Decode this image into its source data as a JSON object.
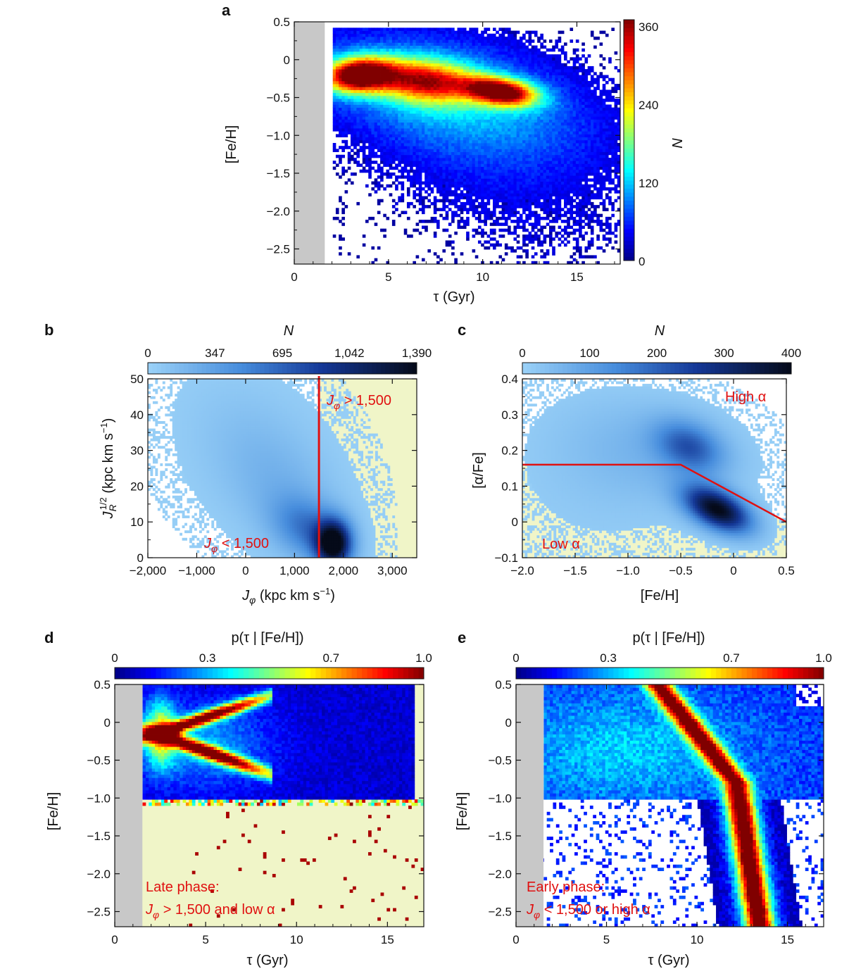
{
  "chart_data": [
    {
      "panel": "a",
      "type": "heatmap",
      "xlabel": "τ (Gyr)",
      "ylabel": "[Fe/H]",
      "colorbar_label": "N",
      "xlim": [
        0,
        17.3
      ],
      "ylim": [
        -2.7,
        0.5
      ],
      "xticks": [
        0,
        5,
        10,
        15
      ],
      "xtick_labels": [
        "0",
        "5",
        "10",
        "15"
      ],
      "yticks": [
        0.5,
        0,
        -0.5,
        -1.0,
        -1.5,
        -2.0,
        -2.5
      ],
      "ytick_labels": [
        "0.5",
        "0",
        "−0.5",
        "−1.0",
        "−1.5",
        "−2.0",
        "−2.5"
      ],
      "colorbar": {
        "orientation": "vertical",
        "min": 0,
        "max": 370,
        "ticks": [
          0,
          120,
          240,
          360
        ],
        "tick_labels": [
          "0",
          "120",
          "240",
          "360"
        ],
        "colormap": "jet"
      },
      "shaded_region": {
        "x": [
          0,
          1.6
        ],
        "color": "#c8c8c8"
      },
      "density_peaks": [
        {
          "x": 3.5,
          "y": -0.2,
          "N": 360
        },
        {
          "x": 11.0,
          "y": -0.42,
          "N": 330
        }
      ]
    },
    {
      "panel": "b",
      "type": "heatmap",
      "xlabel": "J",
      "xlabel_sub": "φ",
      "xlabel_unit": "(kpc km s",
      "xlabel_sup": "−1",
      "xlabel_close": ")",
      "ylabel": "J",
      "ylabel_sub": "R",
      "ylabel_sup": "1/2",
      "ylabel_unit": "(kpc km s",
      "ylabel_unit_sup": "−1",
      "ylabel_close": ")",
      "colorbar_label": "N",
      "xlim": [
        -2000,
        3500
      ],
      "ylim": [
        0,
        50
      ],
      "xticks": [
        -2000,
        -1000,
        0,
        1000,
        2000,
        3000
      ],
      "xtick_labels": [
        "−2,000",
        "−1,000",
        "0",
        "1,000",
        "2,000",
        "3,000"
      ],
      "yticks": [
        0,
        10,
        20,
        30,
        40,
        50
      ],
      "ytick_labels": [
        "0",
        "10",
        "20",
        "30",
        "40",
        "50"
      ],
      "colorbar": {
        "orientation": "horizontal",
        "min": 0,
        "max": 1390,
        "ticks": [
          0,
          347,
          695,
          1042,
          1390
        ],
        "tick_labels": [
          "0",
          "347",
          "695",
          "1,042",
          "1,390"
        ],
        "colormap": "blues"
      },
      "divider": {
        "x": 1500,
        "color": "#e01010"
      },
      "shaded_region": {
        "x": [
          1500,
          3500
        ],
        "color": "#f0f5c8"
      },
      "annotations": [
        {
          "text_pre": "J",
          "text_sub": "φ",
          "text_post": " > 1,500"
        },
        {
          "text_pre": "J",
          "text_sub": "φ",
          "text_post": " < 1,500"
        }
      ],
      "density_peak": {
        "x": 1800,
        "y": 4
      }
    },
    {
      "panel": "c",
      "type": "heatmap",
      "xlabel": "[Fe/H]",
      "ylabel": "[α/Fe]",
      "colorbar_label": "N",
      "xlim": [
        -2.0,
        0.5
      ],
      "ylim": [
        -0.1,
        0.4
      ],
      "xticks": [
        -2.0,
        -1.5,
        -1.0,
        -0.5,
        0,
        0.5
      ],
      "xtick_labels": [
        "−2.0",
        "−1.5",
        "−1.0",
        "−0.5",
        "0",
        "0.5"
      ],
      "yticks": [
        -0.1,
        0,
        0.1,
        0.2,
        0.3,
        0.4
      ],
      "ytick_labels": [
        "−0.1",
        "0",
        "0.1",
        "0.2",
        "0.3",
        "0.4"
      ],
      "colorbar": {
        "orientation": "horizontal",
        "min": 0,
        "max": 400,
        "ticks": [
          0,
          100,
          200,
          300,
          400
        ],
        "tick_labels": [
          "0",
          "100",
          "200",
          "300",
          "400"
        ],
        "colormap": "blues"
      },
      "divider_line": {
        "points": [
          [
            -2.0,
            0.16
          ],
          [
            -0.5,
            0.16
          ],
          [
            0.5,
            0.0
          ]
        ],
        "color": "#e01010"
      },
      "annotations": [
        {
          "text": "High α"
        },
        {
          "text": "Low α"
        }
      ],
      "density_peaks": [
        {
          "x": -0.1,
          "y": 0.03
        },
        {
          "x": -0.4,
          "y": 0.2
        }
      ]
    },
    {
      "panel": "d",
      "type": "heatmap",
      "xlabel": "τ (Gyr)",
      "ylabel": "[Fe/H]",
      "colorbar_label": "p(τ | [Fe/H])",
      "xlim": [
        0,
        17
      ],
      "ylim": [
        -2.7,
        0.5
      ],
      "xticks": [
        0,
        5,
        10,
        15
      ],
      "xtick_labels": [
        "0",
        "5",
        "10",
        "15"
      ],
      "yticks": [
        0.5,
        0,
        -0.5,
        -1.0,
        -1.5,
        -2.0,
        -2.5
      ],
      "ytick_labels": [
        "0.5",
        "0",
        "−0.5",
        "−1.0",
        "−1.5",
        "−2.0",
        "−2.5"
      ],
      "colorbar": {
        "orientation": "horizontal",
        "min": 0,
        "max": 1.0,
        "ticks": [
          0,
          0.3,
          0.7,
          1.0
        ],
        "tick_labels": [
          "0",
          "0.3",
          "0.7",
          "1.0"
        ],
        "colormap": "jet"
      },
      "shaded_region": {
        "x": [
          0,
          1.5
        ],
        "color": "#c8c8c8"
      },
      "background": "#f0f5c8",
      "annotations": [
        {
          "line1": "Late phase:",
          "line2_pre": "J",
          "line2_sub": "φ",
          "line2_post": " > 1,500 and low α"
        }
      ]
    },
    {
      "panel": "e",
      "type": "heatmap",
      "xlabel": "τ (Gyr)",
      "ylabel": "[Fe/H]",
      "colorbar_label": "p(τ | [Fe/H])",
      "xlim": [
        0,
        17
      ],
      "ylim": [
        -2.7,
        0.5
      ],
      "xticks": [
        0,
        5,
        10,
        15
      ],
      "xtick_labels": [
        "0",
        "5",
        "10",
        "15"
      ],
      "yticks": [
        0.5,
        0,
        -0.5,
        -1.0,
        -1.5,
        -2.0,
        -2.5
      ],
      "ytick_labels": [
        "0.5",
        "0",
        "−0.5",
        "−1.0",
        "−1.5",
        "−2.0",
        "−2.5"
      ],
      "colorbar": {
        "orientation": "horizontal",
        "min": 0,
        "max": 1.0,
        "ticks": [
          0,
          0.3,
          0.7,
          1.0
        ],
        "tick_labels": [
          "0",
          "0.3",
          "0.7",
          "1.0"
        ],
        "colormap": "jet"
      },
      "shaded_region": {
        "x": [
          0,
          1.5
        ],
        "color": "#c8c8c8"
      },
      "annotations": [
        {
          "line1": "Early phase:",
          "line2_pre": "J",
          "line2_sub": "φ",
          "line2_post": " < 1,500 or high α"
        }
      ]
    }
  ]
}
